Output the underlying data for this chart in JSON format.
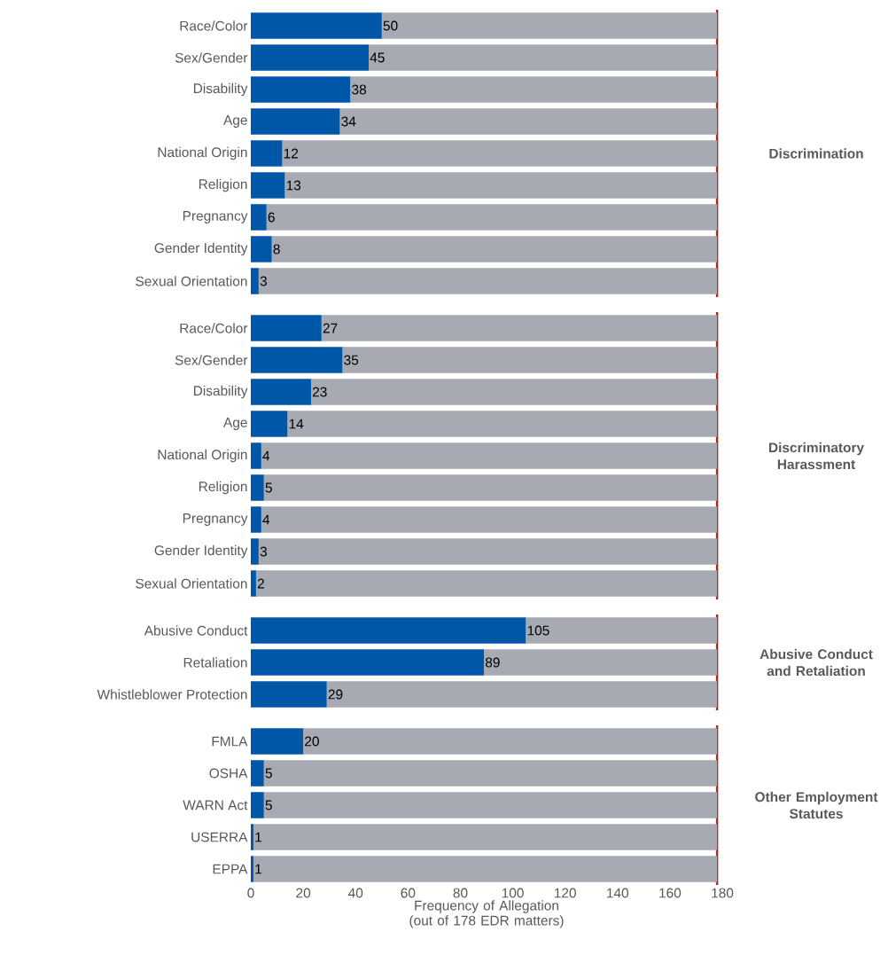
{
  "chart_data": [
    {
      "type": "bar",
      "orientation": "horizontal",
      "stacked": true,
      "y2label": "Discrimination",
      "categories": [
        "Race/Color",
        "Sex/Gender",
        "Disability",
        "Age",
        "National Origin",
        "Religion",
        "Pregnancy",
        "Gender Identity",
        "Sexual Orientation"
      ],
      "series": [
        {
          "color": "#0057a8",
          "values": [
            50,
            45,
            38,
            34,
            12,
            13,
            6,
            8,
            3
          ],
          "value_labels": [
            "50",
            "45",
            "38",
            "34",
            "12",
            "13",
            "6",
            "8",
            "3"
          ]
        },
        {
          "color": "#a8aab3",
          "values": [
            128,
            133,
            140,
            144,
            166,
            165,
            172,
            170,
            175
          ]
        }
      ],
      "xlim": [
        0,
        180
      ],
      "tick_labels": "y",
      "ref_lines": [
        {
          "axis": "x",
          "value": 178,
          "color": "#a0301e"
        }
      ]
    },
    {
      "type": "bar",
      "orientation": "horizontal",
      "stacked": true,
      "y2label": "Discriminatory Harassment",
      "categories": [
        "Race/Color",
        "Sex/Gender",
        "Disability",
        "Age",
        "National Origin",
        "Religion",
        "Pregnancy",
        "Gender Identity",
        "Sexual Orientation"
      ],
      "series": [
        {
          "color": "#0057a8",
          "values": [
            27,
            35,
            23,
            14,
            4,
            5,
            4,
            3,
            2
          ],
          "value_labels": [
            "27",
            "35",
            "23",
            "14",
            "4",
            "5",
            "4",
            "3",
            "2"
          ]
        },
        {
          "color": "#a8aab3",
          "values": [
            151,
            143,
            155,
            164,
            174,
            173,
            174,
            175,
            176
          ]
        }
      ],
      "xlim": [
        0,
        180
      ],
      "tick_labels": "y",
      "ref_lines": [
        {
          "axis": "x",
          "value": 178,
          "color": "#a0301e"
        }
      ]
    },
    {
      "type": "bar",
      "orientation": "horizontal",
      "stacked": true,
      "y2label": "Abusive Conduct and Retaliation",
      "categories": [
        "Abusive Conduct",
        "Retaliation",
        "Whistleblower Protection"
      ],
      "series": [
        {
          "color": "#0057a8",
          "values": [
            105,
            89,
            29
          ],
          "value_labels": [
            "105",
            "89",
            "29"
          ]
        },
        {
          "color": "#a8aab3",
          "values": [
            73,
            89,
            149
          ]
        }
      ],
      "xlim": [
        0,
        180
      ],
      "tick_labels": "y",
      "ref_lines": [
        {
          "axis": "x",
          "value": 178,
          "color": "#a0301e"
        }
      ]
    },
    {
      "type": "bar",
      "orientation": "horizontal",
      "stacked": true,
      "y2label": "Other Employment Statutes",
      "xlabel": "Frequency of Allegation (out of 178 EDR matters)",
      "categories": [
        "FMLA",
        "OSHA",
        "WARN Act",
        "USERRA",
        "EPPA"
      ],
      "series": [
        {
          "color": "#0057a8",
          "values": [
            20,
            5,
            5,
            1,
            1
          ],
          "value_labels": [
            "20",
            "5",
            "5",
            "1",
            "1"
          ]
        },
        {
          "color": "#a8aab3",
          "values": [
            158,
            173,
            173,
            177,
            177
          ]
        }
      ],
      "xlim": [
        0,
        180
      ],
      "xticks": [
        0,
        20,
        40,
        60,
        80,
        100,
        120,
        140,
        160,
        180
      ],
      "ref_lines": [
        {
          "axis": "x",
          "value": 178,
          "color": "#a0301e"
        }
      ]
    }
  ]
}
